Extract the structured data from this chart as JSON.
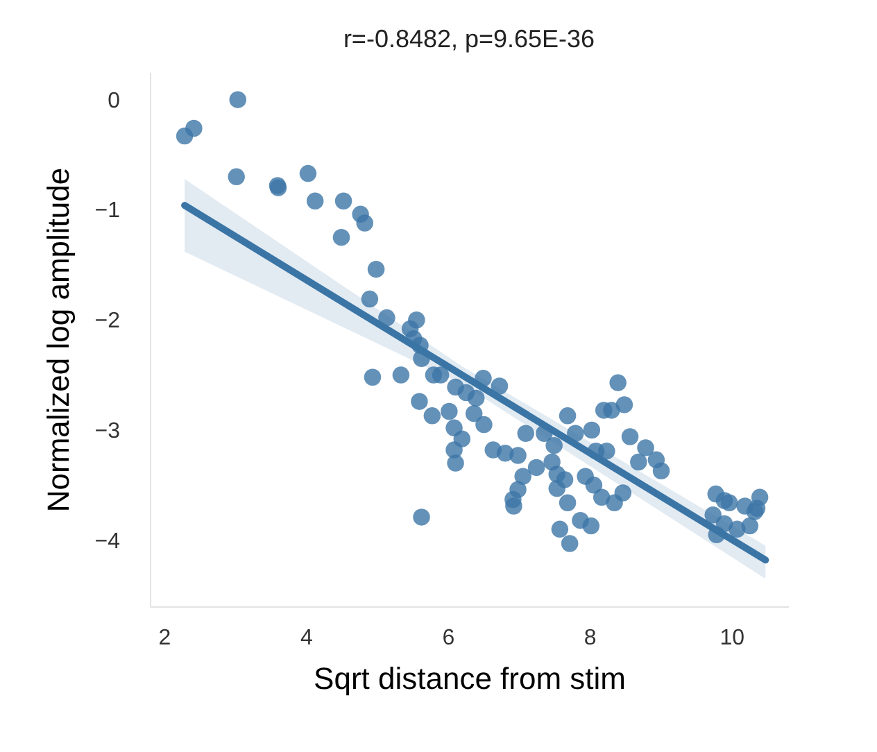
{
  "chart_data": {
    "type": "scatter",
    "title": "r=-0.8482, p=9.65E-36",
    "xlabel": "Sqrt distance from stim",
    "ylabel": "Normalized log amplitude",
    "xlim": [
      1.8,
      10.8
    ],
    "ylim": [
      -4.6,
      0.25
    ],
    "xticks": [
      2,
      4,
      6,
      8,
      10
    ],
    "yticks": [
      0,
      -1,
      -2,
      -3,
      -4
    ],
    "grid": false,
    "series": [
      {
        "type": "scatter",
        "marker": "circle",
        "color": "#3c76a6",
        "x": [
          2.29,
          2.42,
          3.04,
          3.02,
          3.6,
          3.61,
          4.03,
          4.13,
          4.53,
          4.5,
          4.77,
          4.83,
          4.99,
          4.9,
          4.94,
          5.14,
          5.34,
          5.56,
          5.47,
          5.52,
          5.61,
          5.63,
          5.6,
          5.63,
          5.78,
          5.8,
          5.9,
          6.02,
          6.11,
          6.09,
          6.2,
          6.09,
          6.11,
          6.26,
          6.37,
          6.5,
          6.51,
          6.4,
          6.73,
          6.64,
          6.81,
          6.99,
          7.1,
          7.06,
          6.99,
          6.92,
          6.93,
          7.25,
          7.36,
          7.47,
          7.5,
          7.54,
          7.54,
          7.58,
          7.69,
          7.65,
          7.69,
          7.72,
          7.8,
          7.87,
          7.94,
          8.03,
          8.02,
          8.06,
          8.09,
          8.17,
          8.2,
          8.31,
          8.4,
          8.49,
          8.24,
          8.35,
          8.47,
          8.57,
          8.69,
          8.79,
          8.94,
          9.01,
          9.78,
          9.74,
          9.79,
          9.9,
          9.97,
          9.9,
          10.08,
          10.19,
          10.26,
          10.33,
          10.4,
          10.36
        ],
        "values": [
          -0.33,
          -0.26,
          0.0,
          -0.7,
          -0.78,
          -0.8,
          -0.67,
          -0.92,
          -0.92,
          -1.25,
          -1.04,
          -1.12,
          -1.54,
          -1.81,
          -2.52,
          -1.98,
          -2.5,
          -2.0,
          -2.08,
          -2.17,
          -2.23,
          -2.35,
          -2.74,
          -3.79,
          -2.87,
          -2.5,
          -2.5,
          -2.83,
          -2.61,
          -2.98,
          -3.08,
          -3.18,
          -3.3,
          -2.66,
          -2.85,
          -2.53,
          -2.95,
          -2.71,
          -2.6,
          -3.18,
          -3.21,
          -3.23,
          -3.03,
          -3.42,
          -3.54,
          -3.63,
          -3.69,
          -3.34,
          -3.03,
          -3.29,
          -3.14,
          -3.4,
          -3.53,
          -3.9,
          -2.87,
          -3.45,
          -3.66,
          -4.03,
          -3.03,
          -3.82,
          -3.42,
          -3.0,
          -3.87,
          -3.5,
          -3.19,
          -3.61,
          -2.82,
          -2.82,
          -2.57,
          -2.77,
          -3.19,
          -3.66,
          -3.57,
          -3.06,
          -3.29,
          -3.16,
          -3.27,
          -3.37,
          -3.58,
          -3.77,
          -3.95,
          -3.64,
          -3.66,
          -3.85,
          -3.9,
          -3.69,
          -3.87,
          -3.74,
          -3.61,
          -3.71
        ]
      },
      {
        "type": "line",
        "color": "#3a75a5",
        "x": [
          2.29,
          6.2,
          10.48
        ],
        "values": [
          -0.96,
          -2.5,
          -4.18
        ],
        "lower": [
          -1.38,
          -2.58,
          -4.35
        ],
        "upper": [
          -0.72,
          -2.42,
          -4.05
        ]
      }
    ]
  }
}
